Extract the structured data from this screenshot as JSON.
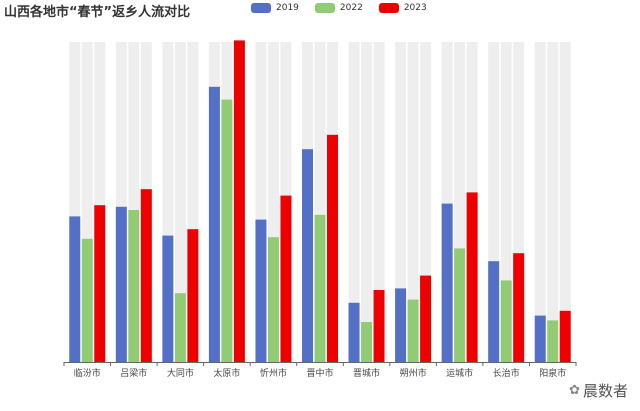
{
  "chart_data": {
    "type": "bar",
    "title": "山西各地市“春节”返乡人流对比",
    "categories": [
      "临汾市",
      "吕梁市",
      "大同市",
      "太原市",
      "忻州市",
      "晋中市",
      "晋城市",
      "朔州市",
      "运城市",
      "长治市",
      "阳泉市"
    ],
    "series": [
      {
        "name": "2019",
        "color": "#5470c6",
        "values": [
          45.5,
          48.5,
          39.5,
          86,
          44.5,
          66.5,
          18.5,
          23,
          49.5,
          31.5,
          14.5
        ]
      },
      {
        "name": "2022",
        "color": "#91cc75",
        "values": [
          38.5,
          47.5,
          21.5,
          82,
          39,
          46,
          12.5,
          19.5,
          35.5,
          25.5,
          13
        ]
      },
      {
        "name": "2023",
        "color": "#ee0000",
        "values": [
          49,
          54,
          41.5,
          100.5,
          52,
          71,
          22.5,
          27,
          53,
          34,
          16
        ]
      }
    ],
    "ylim": [
      0,
      100
    ],
    "background_bar_color": "#eeeeee",
    "grid": false,
    "legend_position": "top-center"
  },
  "watermark": {
    "icon": "paw-icon",
    "text": "晨数者"
  }
}
